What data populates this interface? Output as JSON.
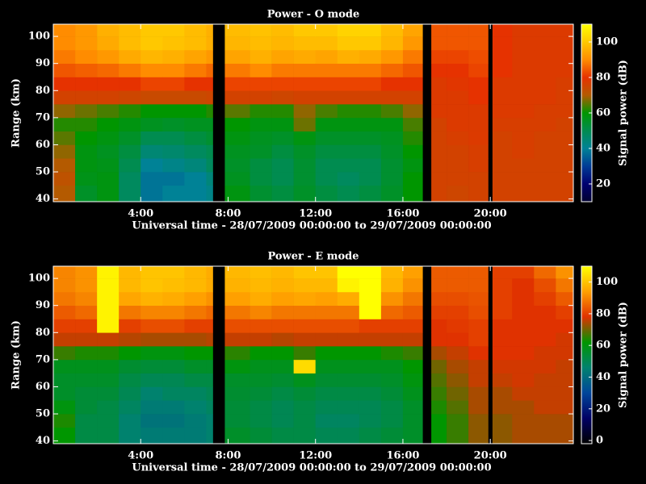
{
  "chart_data": [
    {
      "type": "heatmap",
      "title": "Power - O mode",
      "xlabel": "Universal time - 28/07/2009 00:00:00 to 29/07/2009 00:00:00",
      "ylabel": "Range (km)",
      "colorbar_label": "Signal power (dB)",
      "x_bins": [
        0,
        1,
        2,
        3,
        4,
        5,
        6,
        7,
        7.3,
        7.85,
        9,
        10,
        11,
        12,
        13,
        14,
        15,
        16,
        16.9,
        17.3,
        18,
        19,
        19.9,
        20.1,
        21,
        22,
        23,
        23.8
      ],
      "y_bins": [
        39,
        45,
        50,
        55,
        60,
        65,
        70,
        75,
        80,
        85,
        90,
        95,
        100,
        105
      ],
      "values": [
        [
          70,
          72,
          70,
          68,
          65,
          62,
          68,
          76,
          80,
          84,
          88,
          90,
          90
        ],
        [
          55,
          57,
          58,
          58,
          60,
          62,
          66,
          76,
          80,
          85,
          90,
          92,
          92
        ],
        [
          58,
          58,
          57,
          56,
          58,
          60,
          64,
          76,
          80,
          86,
          92,
          95,
          96
        ],
        [
          48,
          48,
          50,
          52,
          55,
          58,
          62,
          75,
          80,
          88,
          95,
          98,
          98
        ],
        [
          38,
          38,
          40,
          45,
          50,
          56,
          60,
          74,
          82,
          90,
          97,
          100,
          100
        ],
        [
          40,
          38,
          42,
          46,
          50,
          55,
          60,
          74,
          82,
          90,
          96,
          99,
          100
        ],
        [
          40,
          40,
          44,
          48,
          52,
          56,
          60,
          74,
          80,
          88,
          94,
          98,
          98
        ],
        [
          42,
          44,
          48,
          50,
          54,
          56,
          62,
          75,
          80,
          86,
          92,
          96,
          96
        ],
        [
          null,
          null,
          null,
          null,
          null,
          null,
          null,
          null,
          null,
          null,
          null,
          null,
          null
        ],
        [
          58,
          56,
          55,
          56,
          58,
          60,
          65,
          76,
          82,
          88,
          94,
          97,
          98
        ],
        [
          54,
          52,
          52,
          55,
          56,
          58,
          62,
          76,
          82,
          90,
          96,
          98,
          99
        ],
        [
          52,
          50,
          50,
          52,
          55,
          58,
          62,
          75,
          82,
          88,
          94,
          97,
          98
        ],
        [
          55,
          54,
          54,
          55,
          58,
          66,
          68,
          76,
          82,
          88,
          95,
          98,
          100
        ],
        [
          52,
          50,
          50,
          52,
          55,
          58,
          64,
          76,
          82,
          88,
          94,
          98,
          100
        ],
        [
          50,
          48,
          50,
          52,
          55,
          58,
          62,
          76,
          82,
          88,
          96,
          100,
          102
        ],
        [
          52,
          50,
          50,
          52,
          55,
          58,
          62,
          76,
          82,
          88,
          95,
          100,
          102
        ],
        [
          55,
          54,
          54,
          55,
          56,
          58,
          64,
          76,
          80,
          86,
          92,
          97,
          98
        ],
        [
          60,
          60,
          58,
          60,
          62,
          64,
          68,
          76,
          80,
          84,
          88,
          92,
          94
        ],
        [
          null,
          null,
          null,
          null,
          null,
          null,
          null,
          null,
          null,
          null,
          null,
          null,
          null
        ],
        [
          76,
          76,
          76,
          76,
          76,
          76,
          78,
          78,
          78,
          80,
          82,
          84,
          84
        ],
        [
          75,
          76,
          76,
          76,
          77,
          78,
          78,
          78,
          79,
          80,
          82,
          84,
          84
        ],
        [
          76,
          76,
          77,
          77,
          78,
          78,
          78,
          80,
          80,
          82,
          83,
          84,
          84
        ],
        [
          null,
          null,
          null,
          null,
          null,
          null,
          null,
          null,
          null,
          null,
          null,
          null,
          null
        ],
        [
          76,
          76,
          76,
          76,
          76,
          77,
          78,
          78,
          78,
          80,
          80,
          80,
          80
        ],
        [
          76,
          76,
          76,
          77,
          77,
          77,
          78,
          78,
          78,
          78,
          78,
          78,
          78
        ],
        [
          76,
          76,
          76,
          76,
          76,
          77,
          77,
          78,
          78,
          78,
          78,
          78,
          78
        ],
        [
          76,
          76,
          76,
          76,
          76,
          76,
          77,
          77,
          77,
          78,
          78,
          78,
          78
        ]
      ],
      "xlim": [
        0,
        23.8
      ],
      "xticks": [
        {
          "value": 4,
          "label": "4:00"
        },
        {
          "value": 8,
          "label": "8:00"
        },
        {
          "value": 12,
          "label": "12:00"
        },
        {
          "value": 16,
          "label": "16:00"
        },
        {
          "value": 20,
          "label": "20:00"
        }
      ],
      "ylim": [
        39,
        104.5
      ],
      "yticks": [
        40,
        50,
        60,
        70,
        80,
        90,
        100
      ],
      "zlim": [
        10,
        110
      ],
      "zticks": [
        20,
        40,
        60,
        80,
        100
      ],
      "colormap": [
        "#000030",
        "#000070",
        "#003c96",
        "#008296",
        "#008c50",
        "#009600",
        "#b45a00",
        "#e63200",
        "#ff8c00",
        "#ffc800",
        "#ffff00"
      ]
    },
    {
      "type": "heatmap",
      "title": "Power - E mode",
      "xlabel": "Universal time - 28/07/2009 00:00:00 to 29/07/2009 00:00:00",
      "ylabel": "Range (km)",
      "colorbar_label": "Signal power (dB)",
      "x_bins": [
        0,
        1,
        2,
        3,
        4,
        5,
        6,
        7,
        7.3,
        7.85,
        9,
        10,
        11,
        12,
        13,
        14,
        15,
        16,
        16.9,
        17.3,
        18,
        19,
        19.9,
        20.1,
        21,
        22,
        23,
        23.8
      ],
      "y_bins": [
        39,
        45,
        50,
        55,
        60,
        65,
        70,
        75,
        80,
        85,
        90,
        95,
        100,
        105
      ],
      "values": [
        [
          62,
          64,
          60,
          56,
          56,
          58,
          66,
          76,
          80,
          84,
          88,
          90,
          90
        ],
        [
          52,
          52,
          54,
          54,
          56,
          58,
          64,
          76,
          80,
          86,
          90,
          92,
          92
        ],
        [
          52,
          52,
          52,
          54,
          56,
          58,
          64,
          76,
          108,
          108,
          108,
          108,
          108
        ],
        [
          46,
          46,
          48,
          50,
          52,
          55,
          62,
          75,
          80,
          88,
          95,
          98,
          98
        ],
        [
          44,
          42,
          44,
          46,
          50,
          54,
          60,
          74,
          82,
          90,
          97,
          100,
          100
        ],
        [
          44,
          42,
          44,
          48,
          50,
          54,
          60,
          74,
          82,
          90,
          96,
          99,
          100
        ],
        [
          44,
          44,
          46,
          48,
          52,
          56,
          62,
          74,
          80,
          88,
          94,
          98,
          98
        ],
        [
          46,
          46,
          48,
          50,
          52,
          56,
          62,
          75,
          80,
          86,
          92,
          96,
          96
        ],
        [
          null,
          null,
          null,
          null,
          null,
          null,
          null,
          null,
          null,
          null,
          null,
          null,
          null
        ],
        [
          56,
          54,
          54,
          55,
          56,
          60,
          65,
          76,
          82,
          88,
          94,
          97,
          98
        ],
        [
          54,
          52,
          52,
          54,
          56,
          58,
          62,
          76,
          82,
          90,
          96,
          98,
          99
        ],
        [
          52,
          50,
          50,
          52,
          55,
          58,
          62,
          75,
          82,
          88,
          94,
          97,
          98
        ],
        [
          52,
          52,
          52,
          54,
          58,
          104,
          66,
          76,
          82,
          88,
          95,
          98,
          100
        ],
        [
          50,
          48,
          50,
          52,
          55,
          58,
          62,
          76,
          82,
          88,
          94,
          98,
          100
        ],
        [
          50,
          48,
          50,
          52,
          55,
          58,
          62,
          76,
          82,
          88,
          96,
          108,
          110
        ],
        [
          52,
          50,
          50,
          52,
          55,
          58,
          62,
          76,
          80,
          110,
          110,
          110,
          110
        ],
        [
          54,
          52,
          52,
          54,
          56,
          58,
          64,
          76,
          80,
          86,
          92,
          97,
          98
        ],
        [
          56,
          56,
          56,
          58,
          60,
          62,
          66,
          76,
          80,
          84,
          88,
          92,
          94
        ],
        [
          null,
          null,
          null,
          null,
          null,
          null,
          null,
          null,
          null,
          null,
          null,
          null,
          null
        ],
        [
          62,
          62,
          64,
          66,
          68,
          70,
          74,
          78,
          78,
          80,
          82,
          84,
          84
        ],
        [
          66,
          66,
          68,
          70,
          72,
          74,
          76,
          78,
          79,
          80,
          82,
          84,
          84
        ],
        [
          72,
          72,
          74,
          74,
          76,
          76,
          78,
          80,
          80,
          82,
          83,
          84,
          84
        ],
        [
          null,
          null,
          null,
          null,
          null,
          null,
          null,
          null,
          null,
          null,
          null,
          null,
          null
        ],
        [
          72,
          72,
          74,
          74,
          76,
          77,
          78,
          78,
          78,
          80,
          80,
          80,
          80
        ],
        [
          74,
          74,
          74,
          76,
          77,
          77,
          78,
          78,
          78,
          78,
          78,
          78,
          80
        ],
        [
          74,
          74,
          76,
          76,
          76,
          77,
          77,
          78,
          78,
          78,
          80,
          82,
          86
        ],
        [
          74,
          74,
          76,
          76,
          76,
          76,
          77,
          77,
          78,
          80,
          84,
          88,
          92
        ]
      ],
      "xlim": [
        0,
        23.8
      ],
      "xticks": [
        {
          "value": 4,
          "label": "4:00"
        },
        {
          "value": 8,
          "label": "8:00"
        },
        {
          "value": 12,
          "label": "12:00"
        },
        {
          "value": 16,
          "label": "16:00"
        },
        {
          "value": 20,
          "label": "20:00"
        }
      ],
      "ylim": [
        39,
        104.5
      ],
      "yticks": [
        40,
        50,
        60,
        70,
        80,
        90,
        100
      ],
      "zlim": [
        -2,
        110
      ],
      "zticks": [
        0,
        20,
        40,
        60,
        80,
        100
      ],
      "colormap": [
        "#000000",
        "#000064",
        "#00469b",
        "#00826e",
        "#009600",
        "#e03200",
        "#ffa000",
        "#ffff00"
      ]
    }
  ]
}
